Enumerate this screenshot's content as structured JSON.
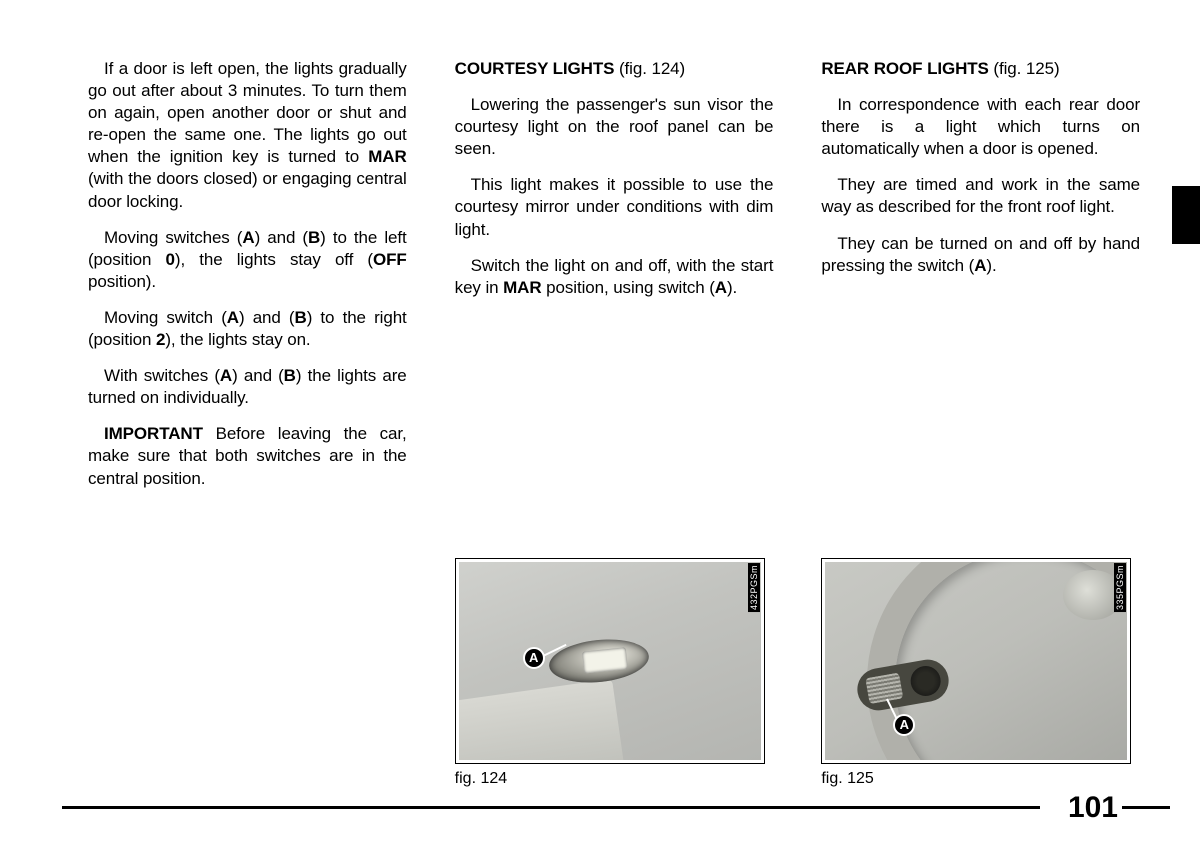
{
  "page_number": "101",
  "side_tab_color": "#000000",
  "columns": {
    "left": {
      "paragraphs": [
        {
          "segments": [
            {
              "t": "If a door is left open, the lights gradually go out after about 3 minutes. To turn them on again, open another door or shut and re-open the same one. The lights go out when the ignition key is turned to "
            },
            {
              "t": "MAR",
              "b": true
            },
            {
              "t": " (with the doors closed) or engaging central door locking."
            }
          ]
        },
        {
          "segments": [
            {
              "t": "Moving switches ("
            },
            {
              "t": "A",
              "b": true
            },
            {
              "t": ") and ("
            },
            {
              "t": "B",
              "b": true
            },
            {
              "t": ") to the left (position "
            },
            {
              "t": "0",
              "b": true
            },
            {
              "t": "), the lights stay off ("
            },
            {
              "t": "OFF",
              "b": true
            },
            {
              "t": " position)."
            }
          ]
        },
        {
          "segments": [
            {
              "t": "Moving switch ("
            },
            {
              "t": "A",
              "b": true
            },
            {
              "t": ") and ("
            },
            {
              "t": "B",
              "b": true
            },
            {
              "t": ") to the right (position "
            },
            {
              "t": "2",
              "b": true
            },
            {
              "t": "), the lights stay on."
            }
          ]
        },
        {
          "segments": [
            {
              "t": "With switches ("
            },
            {
              "t": "A",
              "b": true
            },
            {
              "t": ") and ("
            },
            {
              "t": "B",
              "b": true
            },
            {
              "t": ") the lights are turned on individually."
            }
          ]
        },
        {
          "segments": [
            {
              "t": "IMPORTANT",
              "b": true
            },
            {
              "t": " Before leaving the car, make sure that both switches are in the central position."
            }
          ]
        }
      ]
    },
    "middle": {
      "heading": {
        "title": "COURTESY LIGHTS",
        "ref": " (fig. 124)"
      },
      "paragraphs": [
        {
          "segments": [
            {
              "t": "Lowering the passenger's sun visor the courtesy light on the roof panel can be seen."
            }
          ]
        },
        {
          "segments": [
            {
              "t": "This light makes it possible to use the courtesy mirror under conditions with dim light."
            }
          ]
        },
        {
          "segments": [
            {
              "t": "Switch the light on and off, with the start key in "
            },
            {
              "t": "MAR",
              "b": true
            },
            {
              "t": " position, using switch ("
            },
            {
              "t": "A",
              "b": true
            },
            {
              "t": ")."
            }
          ]
        }
      ]
    },
    "right": {
      "heading": {
        "title": "REAR ROOF LIGHTS",
        "ref": " (fig. 125)"
      },
      "paragraphs": [
        {
          "segments": [
            {
              "t": "In correspondence with each rear door there is a light which turns on automatically when a door is opened."
            }
          ]
        },
        {
          "segments": [
            {
              "t": "They are timed and work in the same way as described for the front roof light."
            }
          ]
        },
        {
          "segments": [
            {
              "t": "They can be turned on and off by hand pressing the switch ("
            },
            {
              "t": "A",
              "b": true
            },
            {
              "t": ")."
            }
          ]
        }
      ]
    }
  },
  "figures": {
    "fig124": {
      "caption": "fig. 124",
      "code": "432PGSm",
      "callout_letter": "A"
    },
    "fig125": {
      "caption": "fig. 125",
      "code": "335PGSm",
      "callout_letter": "A"
    }
  }
}
